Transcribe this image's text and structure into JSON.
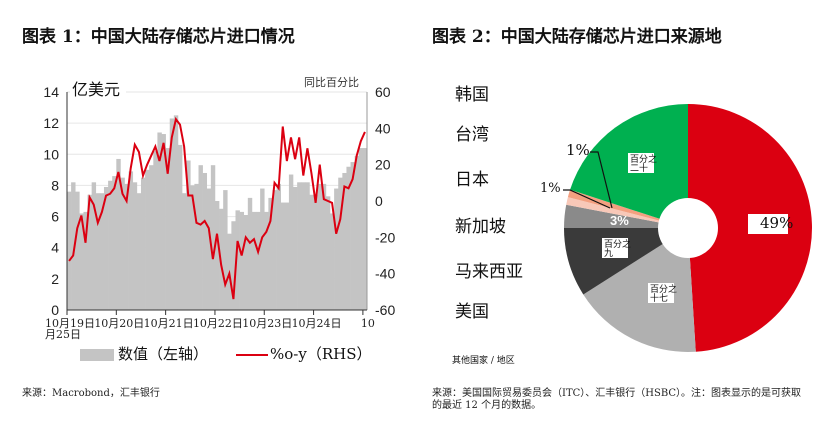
{
  "left": {
    "title": "图表 1：中国大陆存储芯片进口情况",
    "source": "来源：Macrobond，汇丰银行",
    "chart_data": {
      "type": "bar+line",
      "unit_left": "亿美元",
      "unit_right": "同比百分比",
      "x_start": "Oct 2018",
      "x_ticks": [
        "10月19日",
        "10月20日",
        "10月21日",
        "10月22日",
        "10月23日",
        "10月24日",
        "10月25日"
      ],
      "left_ticks": [
        "0",
        "2",
        "4",
        "6",
        "8",
        "10",
        "12",
        "14"
      ],
      "ylim_left": [
        0,
        14
      ],
      "right_ticks": [
        "-60",
        "-40",
        "-20",
        "0",
        "20",
        "40",
        "60"
      ],
      "ylim_right": [
        -60,
        60
      ],
      "series": [
        {
          "name": "数值（左轴）",
          "type": "bar",
          "color": "#c4c4c4",
          "values": [
            7.6,
            8.2,
            7.6,
            6.2,
            6.3,
            7.4,
            8.2,
            7.5,
            7.5,
            7.9,
            8.3,
            8.6,
            9.7,
            8.5,
            8.1,
            8.9,
            8.2,
            7.5,
            8.5,
            9.0,
            9.3,
            10.2,
            11.4,
            11.3,
            10.4,
            12.3,
            12.5,
            10.6,
            7.5,
            9.6,
            8.0,
            8.1,
            9.3,
            8.8,
            7.8,
            9.3,
            7.0,
            6.5,
            7.7,
            4.9,
            5.7,
            6.4,
            6.3,
            6.1,
            7.2,
            6.3,
            6.3,
            7.8,
            6.3,
            7.2,
            7.7,
            8.1,
            6.9,
            6.9,
            8.7,
            7.9,
            8.2,
            8.2,
            8.2,
            7.4,
            7.4,
            8.1,
            8.1,
            7.3,
            6.2,
            7.8,
            8.5,
            8.8,
            9.2,
            9.5,
            9.9,
            10.4,
            10.4
          ]
        },
        {
          "name": "%o-y（RHS）",
          "type": "line",
          "color": "#db0011",
          "values": [
            -33,
            -30,
            -15,
            -8,
            -23,
            2,
            -2,
            -12,
            -6,
            3,
            4,
            7,
            16,
            4,
            0,
            18,
            31,
            27,
            14,
            20,
            25,
            30,
            22,
            32,
            15,
            35,
            45,
            42,
            30,
            3,
            3,
            -12,
            -13,
            -11,
            -15,
            -32,
            -18,
            -35,
            -46,
            -40,
            -54,
            -22,
            -30,
            -20,
            -23,
            -21,
            -28,
            -20,
            -17,
            -11,
            10,
            7,
            41,
            22,
            35,
            23,
            35,
            14,
            29,
            15,
            -1,
            20,
            1,
            0,
            -1,
            -18,
            -10,
            8,
            7,
            12,
            25,
            33,
            38
          ]
        }
      ]
    }
  },
  "right": {
    "title": "图表 2：中国大陆存储芯片进口来源地",
    "source": "来源：美国国际贸易委员会（ITC）、汇丰银行（HSBC）。注：图表显示的是可获取的最近 12 个月的数据。",
    "chart_data": {
      "type": "pie",
      "slices": [
        {
          "label": "韩国",
          "value": 49,
          "text": "49%",
          "color": "#db0011"
        },
        {
          "label": "其他国家 / 地区",
          "value": 17,
          "text": "百分之十七",
          "color": "#b0b0b0"
        },
        {
          "label": "美国",
          "value": 9,
          "text": "百分之九",
          "color": "#3a3a3a"
        },
        {
          "label": "马来西亚",
          "value": 3,
          "text": "3%",
          "color": "#8a8a8a"
        },
        {
          "label": "新加坡",
          "value": 1,
          "text": "1%",
          "color": "#f8c8b8"
        },
        {
          "label": "日本",
          "value": 1,
          "text": "1%",
          "color": "#f4a080"
        },
        {
          "label": "台湾",
          "value": 20,
          "text": "百分之二十",
          "color": "#00b050"
        }
      ]
    }
  }
}
